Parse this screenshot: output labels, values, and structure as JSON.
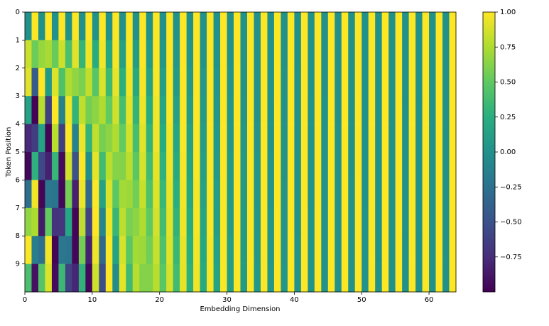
{
  "chart_data": {
    "type": "heatmap",
    "x_label": "Embedding Dimension",
    "y_label": "Token Position",
    "xlim": [
      0,
      64
    ],
    "xticks": [
      0,
      10,
      20,
      30,
      40,
      50,
      60
    ],
    "ylim": [
      10,
      0
    ],
    "yticks": [
      0,
      1,
      2,
      3,
      4,
      5,
      6,
      7,
      8,
      9
    ],
    "colormap": "viridis",
    "zlim": [
      -1,
      1
    ],
    "colorbar_ticks": [
      {
        "value": -0.75,
        "label": "−0.75"
      },
      {
        "value": -0.5,
        "label": "−0.50"
      },
      {
        "value": -0.25,
        "label": "−0.25"
      },
      {
        "value": 0,
        "label": "0.00"
      },
      {
        "value": 0.25,
        "label": "0.25"
      },
      {
        "value": 0.5,
        "label": "0.50"
      },
      {
        "value": 0.75,
        "label": "0.75"
      },
      {
        "value": 1,
        "label": "1.00"
      }
    ],
    "z": [
      [
        0,
        1,
        0,
        1,
        0,
        1,
        0,
        1,
        0,
        1,
        0,
        1,
        0,
        1,
        0,
        1,
        0,
        1,
        0,
        1,
        0,
        1,
        0,
        1,
        0,
        1,
        0,
        1,
        0,
        1,
        0,
        1,
        0,
        1,
        0,
        1,
        0,
        1,
        0,
        1,
        0,
        1,
        0,
        1,
        0,
        1,
        0,
        1,
        0,
        1,
        0,
        1,
        0,
        1,
        0,
        1,
        0,
        1,
        0,
        1,
        0,
        1,
        0,
        1
      ],
      [
        0.84,
        0.54,
        0.68,
        0.73,
        0.53,
        0.85,
        0.41,
        0.91,
        0.31,
        0.95,
        0.23,
        0.97,
        0.18,
        0.98,
        0.13,
        0.99,
        0.1,
        1,
        0.07,
        1,
        0.06,
        1,
        0.04,
        1,
        0.03,
        1,
        0.02,
        1,
        0.02,
        1,
        0.01,
        1,
        0.01,
        1,
        0.01,
        1,
        0.01,
        1,
        0,
        1,
        0,
        1,
        0,
        1,
        0,
        1,
        0,
        1,
        0,
        1,
        0,
        1,
        0,
        1,
        0,
        1,
        0,
        1,
        0,
        1,
        0,
        1,
        0,
        1
      ],
      [
        0.91,
        -0.42,
        1,
        0.07,
        0.9,
        0.43,
        0.75,
        0.66,
        0.59,
        0.81,
        0.46,
        0.89,
        0.35,
        0.94,
        0.26,
        0.96,
        0.2,
        0.98,
        0.15,
        0.99,
        0.11,
        0.99,
        0.08,
        1,
        0.06,
        1,
        0.05,
        1,
        0.04,
        1,
        0.03,
        1,
        0.02,
        1,
        0.01,
        1,
        0.01,
        1,
        0.01,
        1,
        0.01,
        1,
        0,
        1,
        0,
        1,
        0,
        1,
        0,
        1,
        0,
        1,
        0,
        1,
        0,
        1,
        0,
        1,
        0,
        1,
        0,
        1,
        0,
        1
      ],
      [
        0.14,
        -0.99,
        0.78,
        -0.63,
        0.99,
        -0.12,
        0.95,
        0.3,
        0.81,
        0.58,
        0.65,
        0.76,
        0.51,
        0.86,
        0.39,
        0.92,
        0.3,
        0.96,
        0.22,
        0.97,
        0.17,
        0.99,
        0.13,
        0.99,
        0.09,
        1,
        0.07,
        1,
        0.05,
        1,
        0.04,
        1,
        0.03,
        1,
        0.02,
        1,
        0.02,
        1,
        0.01,
        1,
        0.01,
        1,
        0.01,
        1,
        0.01,
        1,
        0,
        1,
        0,
        1,
        0,
        1,
        0,
        1,
        0,
        1,
        0,
        1,
        0,
        1,
        0,
        1,
        0,
        1
      ],
      [
        -0.76,
        -0.65,
        0.14,
        -0.99,
        0.78,
        -0.63,
        0.99,
        -0.12,
        0.95,
        0.3,
        0.81,
        0.58,
        0.65,
        0.76,
        0.51,
        0.86,
        0.39,
        0.92,
        0.3,
        0.96,
        0.22,
        0.97,
        0.17,
        0.99,
        0.13,
        0.99,
        0.09,
        1,
        0.07,
        1,
        0.05,
        1,
        0.04,
        1,
        0.03,
        1,
        0.02,
        1,
        0.02,
        1,
        0.01,
        1,
        0.01,
        1,
        0.01,
        1,
        0.01,
        1,
        0,
        1,
        0,
        1,
        0,
        1,
        0,
        1,
        0,
        1,
        0,
        1,
        0,
        1,
        0,
        1
      ],
      [
        -0.96,
        0.28,
        -0.57,
        -0.82,
        0.32,
        -0.95,
        0.86,
        -0.51,
        1,
        -0.01,
        0.93,
        0.37,
        0.78,
        0.63,
        0.62,
        0.79,
        0.48,
        0.88,
        0.37,
        0.93,
        0.28,
        0.96,
        0.21,
        0.98,
        0.16,
        0.99,
        0.12,
        0.99,
        0.09,
        1,
        0.07,
        1,
        0.05,
        1,
        0.04,
        1,
        0.03,
        1,
        0.02,
        1,
        0.02,
        1,
        0.01,
        1,
        0.01,
        1,
        0.01,
        1,
        0,
        1,
        0,
        1,
        0,
        1,
        0,
        1,
        0,
        1,
        0,
        1,
        0,
        1,
        0,
        1
      ],
      [
        -0.28,
        0.96,
        -0.98,
        -0.21,
        -0.23,
        -0.97,
        0.57,
        -0.82,
        0.95,
        -0.32,
        0.99,
        0.15,
        0.88,
        0.48,
        0.72,
        0.7,
        0.56,
        0.83,
        0.43,
        0.9,
        0.33,
        0.94,
        0.25,
        0.97,
        0.19,
        0.98,
        0.14,
        0.99,
        0.11,
        0.99,
        0.08,
        1,
        0.06,
        1,
        0.04,
        1,
        0.03,
        1,
        0.03,
        1,
        0.02,
        1,
        0.01,
        1,
        0.01,
        1,
        0.01,
        1,
        0.01,
        1,
        0,
        1,
        0,
        1,
        0,
        1,
        0,
        1,
        0,
        1,
        0,
        1,
        0,
        1
      ],
      [
        0.66,
        0.75,
        -0.86,
        0.51,
        -0.71,
        -0.7,
        0.19,
        -0.98,
        0.8,
        -0.6,
        1,
        -0.09,
        0.95,
        0.32,
        0.8,
        0.59,
        0.64,
        0.76,
        0.5,
        0.87,
        0.38,
        0.92,
        0.29,
        0.96,
        0.22,
        0.98,
        0.17,
        0.99,
        0.12,
        0.99,
        0.09,
        1,
        0.07,
        1,
        0.05,
        1,
        0.04,
        1,
        0.03,
        1,
        0.02,
        1,
        0.02,
        1,
        0.01,
        1,
        0.01,
        1,
        0.01,
        1,
        0.01,
        1,
        0,
        1,
        0,
        1,
        0,
        1,
        0,
        1,
        0,
        1,
        0,
        1
      ],
      [
        0.99,
        -0.15,
        -0.28,
        0.96,
        -0.98,
        -0.21,
        -0.23,
        -0.97,
        0.57,
        -0.82,
        0.95,
        -0.32,
        0.99,
        0.15,
        0.88,
        0.48,
        0.72,
        0.7,
        0.56,
        0.83,
        0.43,
        0.9,
        0.33,
        0.94,
        0.25,
        0.97,
        0.19,
        0.98,
        0.14,
        0.99,
        0.11,
        0.99,
        0.08,
        1,
        0.06,
        1,
        0.04,
        1,
        0.03,
        1,
        0.03,
        1,
        0.02,
        1,
        0.01,
        1,
        0.01,
        1,
        0.01,
        1,
        0.01,
        1,
        0,
        1,
        0,
        1,
        0,
        1,
        0,
        1,
        0,
        1,
        0,
        1
      ],
      [
        0.41,
        -0.91,
        0.45,
        0.89,
        -0.94,
        0.34,
        -0.61,
        -0.79,
        0.29,
        -0.96,
        0.85,
        -0.53,
        1,
        -0.03,
        0.93,
        0.36,
        0.78,
        0.62,
        0.62,
        0.78,
        0.48,
        0.87,
        0.37,
        0.93,
        0.28,
        0.96,
        0.21,
        0.98,
        0.16,
        0.99,
        0.12,
        0.99,
        0.09,
        1,
        0.07,
        1,
        0.05,
        1,
        0.04,
        1,
        0.03,
        1,
        0.02,
        1,
        0.02,
        1,
        0.01,
        1,
        0.01,
        1,
        0.01,
        1,
        0.01,
        1,
        0,
        1,
        0,
        1,
        0,
        1,
        0,
        1,
        0,
        1
      ]
    ]
  }
}
